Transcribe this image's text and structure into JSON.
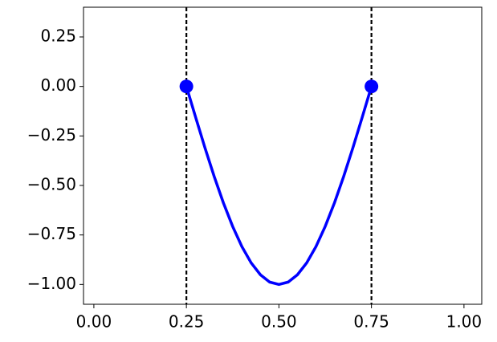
{
  "chart_data": {
    "type": "line",
    "xlim": [
      -0.028,
      1.048
    ],
    "ylim": [
      -1.1,
      0.4
    ],
    "xticks": [
      {
        "value": 0,
        "label": "0.00"
      },
      {
        "value": 0.25,
        "label": "0.25"
      },
      {
        "value": 0.5,
        "label": "0.50"
      },
      {
        "value": 0.75,
        "label": "0.75"
      },
      {
        "value": 1,
        "label": "1.00"
      }
    ],
    "yticks": [
      {
        "value": 0.25,
        "label": "0.25"
      },
      {
        "value": 0,
        "label": "0.00"
      },
      {
        "value": -0.25,
        "label": "−0.25"
      },
      {
        "value": -0.5,
        "label": "−0.50"
      },
      {
        "value": -0.75,
        "label": "−0.75"
      },
      {
        "value": -1,
        "label": "−1.00"
      }
    ],
    "series": [
      {
        "color": "#0000ff",
        "x": [
          0.25,
          0.275,
          0.3,
          0.325,
          0.35,
          0.375,
          0.4,
          0.425,
          0.45,
          0.475,
          0.5,
          0.525,
          0.55,
          0.575,
          0.6,
          0.625,
          0.65,
          0.675,
          0.7,
          0.725,
          0.75
        ],
        "values": [
          0,
          -0.156,
          -0.309,
          -0.454,
          -0.588,
          -0.707,
          -0.809,
          -0.891,
          -0.951,
          -0.988,
          -1,
          -0.988,
          -0.951,
          -0.891,
          -0.809,
          -0.707,
          -0.588,
          -0.454,
          -0.309,
          -0.156,
          0
        ]
      }
    ],
    "points": {
      "color": "#0000ff",
      "x": [
        0.25,
        0.75
      ],
      "values": [
        0,
        0
      ]
    },
    "vlines": {
      "color": "#000000",
      "dashed": true,
      "x": [
        0.25,
        0.75
      ]
    }
  }
}
